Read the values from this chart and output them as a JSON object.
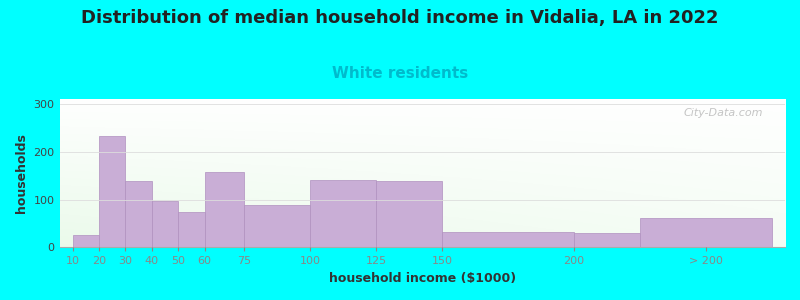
{
  "title": "Distribution of median household income in Vidalia, LA in 2022",
  "subtitle": "White residents",
  "xlabel": "household income ($1000)",
  "ylabel": "households",
  "title_fontsize": 13,
  "subtitle_fontsize": 11,
  "subtitle_color": "#00bbcc",
  "background_outer": "#00ffff",
  "bar_color": "#c9aed6",
  "bar_edgecolor": "#b090bf",
  "values": [
    25,
    232,
    138,
    97,
    75,
    158,
    88,
    140,
    138,
    32,
    30,
    62
  ],
  "bar_lefts": [
    10,
    20,
    30,
    40,
    50,
    60,
    75,
    100,
    125,
    150,
    200,
    225
  ],
  "bar_widths": [
    10,
    10,
    10,
    10,
    10,
    15,
    25,
    25,
    25,
    50,
    25,
    50
  ],
  "ylim": [
    0,
    310
  ],
  "yticks": [
    0,
    100,
    200,
    300
  ],
  "xtick_labels": [
    "10",
    "20",
    "30",
    "40",
    "50",
    "60",
    "75",
    "100",
    "125",
    "150",
    "200",
    "> 200"
  ],
  "xtick_positions": [
    10,
    20,
    30,
    40,
    50,
    60,
    75,
    100,
    125,
    150,
    200,
    250
  ],
  "grid_color": "#dddddd",
  "watermark": "City-Data.com"
}
